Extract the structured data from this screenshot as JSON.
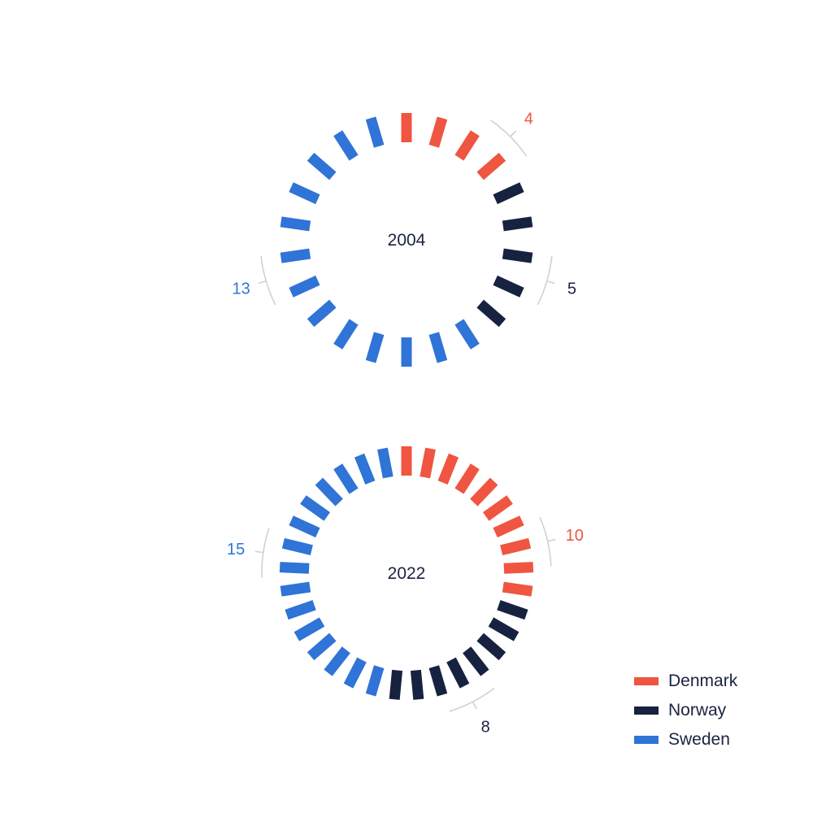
{
  "colors": {
    "Denmark": "#ef5540",
    "Norway": "#172240",
    "Sweden": "#2f74d6",
    "bracket": "#c9d0d6",
    "text": "#1b2340"
  },
  "chart_data": {
    "type": "radial-segment",
    "title": "",
    "legend": {
      "placement": "bottom-right",
      "entries": [
        "Denmark",
        "Norway",
        "Sweden"
      ]
    },
    "rings": [
      {
        "label": "2004",
        "counts": {
          "Denmark": 4,
          "Norway": 5,
          "Sweden": 13
        }
      },
      {
        "label": "2022",
        "counts": {
          "Denmark": 10,
          "Norway": 8,
          "Sweden": 15
        }
      }
    ]
  }
}
